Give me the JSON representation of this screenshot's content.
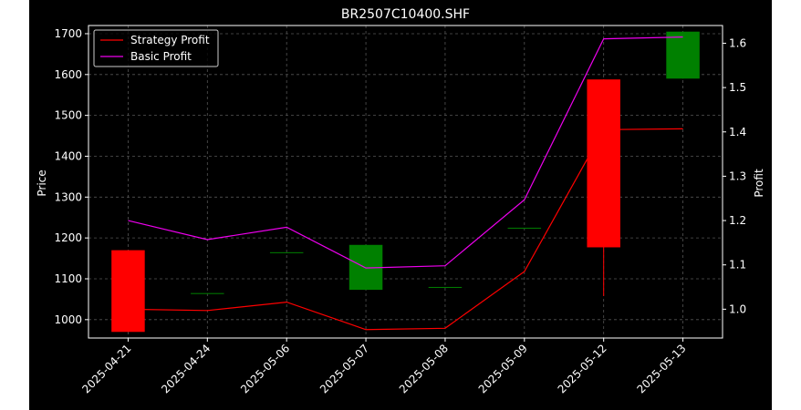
{
  "chart_data": {
    "type": "candlestick",
    "title": "BR2507C10400.SHF",
    "xlabel": "",
    "ylabel_left": "Price",
    "ylabel_right": "Profit",
    "categories": [
      "2025-04-21",
      "2025-04-24",
      "2025-05-06",
      "2025-05-07",
      "2025-05-08",
      "2025-05-09",
      "2025-05-12",
      "2025-05-13"
    ],
    "ylim_left": [
      955,
      1720
    ],
    "yticks_left": [
      1000,
      1100,
      1200,
      1300,
      1400,
      1500,
      1600,
      1700
    ],
    "ylim_right": [
      0.935,
      1.64
    ],
    "yticks_right": [
      1.0,
      1.1,
      1.2,
      1.3,
      1.4,
      1.5,
      1.6
    ],
    "grid": true,
    "legend_position": "top-left",
    "candles": [
      {
        "date": "2025-04-21",
        "open": 1170,
        "close": 970,
        "high": 1170,
        "low": 970
      },
      {
        "date": "2025-04-24",
        "open": 1065,
        "close": 1065,
        "high": 1065,
        "low": 1065
      },
      {
        "date": "2025-05-06",
        "open": 1165,
        "close": 1165,
        "high": 1165,
        "low": 1165
      },
      {
        "date": "2025-05-07",
        "open": 1073,
        "close": 1183,
        "high": 1183,
        "low": 1073
      },
      {
        "date": "2025-05-08",
        "open": 1080,
        "close": 1080,
        "high": 1080,
        "low": 1080
      },
      {
        "date": "2025-05-09",
        "open": 1225,
        "close": 1225,
        "high": 1225,
        "low": 1225
      },
      {
        "date": "2025-05-12",
        "open": 1588,
        "close": 1177,
        "high": 1588,
        "low": 1058
      },
      {
        "date": "2025-05-13",
        "open": 1590,
        "close": 1705,
        "high": 1705,
        "low": 1590
      }
    ],
    "series": [
      {
        "name": "Strategy Profit",
        "axis": "right",
        "color": "#ff0000",
        "values": [
          1.0,
          0.997,
          1.016,
          0.954,
          0.957,
          1.085,
          1.405,
          1.407
        ]
      },
      {
        "name": "Basic Profit",
        "axis": "right",
        "color": "#ee00ee",
        "values": [
          1.2,
          1.157,
          1.185,
          1.093,
          1.098,
          1.247,
          1.61,
          1.614
        ]
      }
    ],
    "colors": {
      "figure_bg": "#000000",
      "outer_bg": "#ffffff",
      "axes_frame": "#ffffff",
      "grid": "#555555",
      "text": "#ffffff",
      "up": "#008000",
      "down": "#ff0000"
    }
  }
}
